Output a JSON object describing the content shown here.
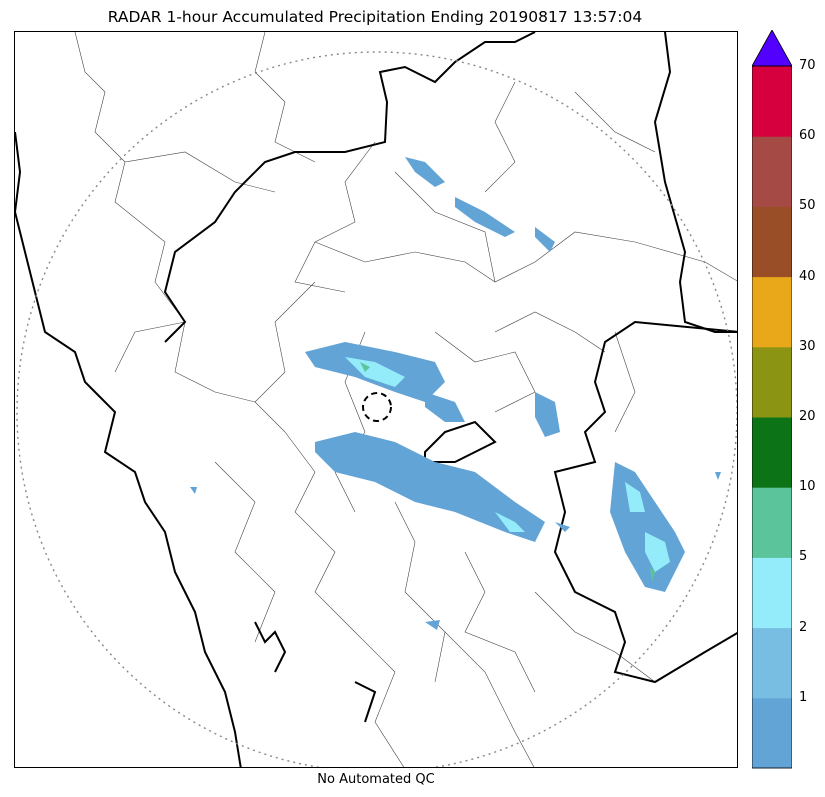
{
  "title": "RADAR 1-hour Accumulated Precipitation Ending 20190817 13:57:04",
  "footer": "No Automated QC",
  "colorbar": {
    "bins": [
      {
        "from": 0,
        "to": 1,
        "color": "#62a4d6"
      },
      {
        "from": 1,
        "to": 2,
        "color": "#78bde2"
      },
      {
        "from": 2,
        "to": 5,
        "color": "#94ecfb"
      },
      {
        "from": 5,
        "to": 10,
        "color": "#5bc49a"
      },
      {
        "from": 10,
        "to": 20,
        "color": "#0d7317"
      },
      {
        "from": 20,
        "to": 30,
        "color": "#8c9414"
      },
      {
        "from": 30,
        "to": 40,
        "color": "#e8a81a"
      },
      {
        "from": 40,
        "to": 50,
        "color": "#9a4e27"
      },
      {
        "from": 50,
        "to": 60,
        "color": "#a54a45"
      },
      {
        "from": 60,
        "to": 70,
        "color": "#d6003f"
      }
    ],
    "extend_max_color": "#5200ff",
    "tick_labels": [
      "1",
      "2",
      "5",
      "10",
      "20",
      "30",
      "40",
      "50",
      "60",
      "70"
    ]
  },
  "map": {
    "radar_range_ring": "dotted",
    "radar_site_marker": "dashed-circle"
  }
}
